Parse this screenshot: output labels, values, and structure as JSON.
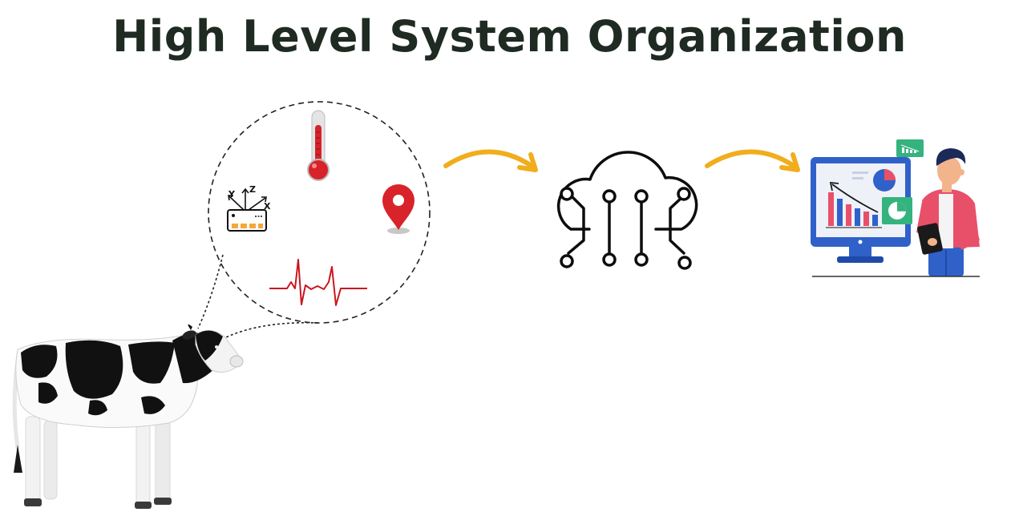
{
  "title": "High Level System Organization",
  "sensor_icons": [
    "accelerometer-icon",
    "thermometer-icon",
    "location-pin-icon",
    "heartbeat-icon"
  ],
  "accelerometer_axes": [
    "Y",
    "Z",
    "X"
  ],
  "flow": [
    "cow",
    "sensor-bubble",
    "cloud-network",
    "analytics-dashboard"
  ],
  "colors": {
    "title": "#1e2a22",
    "arrow": "#f1ad1c",
    "thermometer": "#d8232a",
    "pin": "#d8232a",
    "heartbeat": "#c9171f",
    "monitor": "#2f61c9",
    "jacket": "#e8506a",
    "chart_green": "#35b37e"
  }
}
